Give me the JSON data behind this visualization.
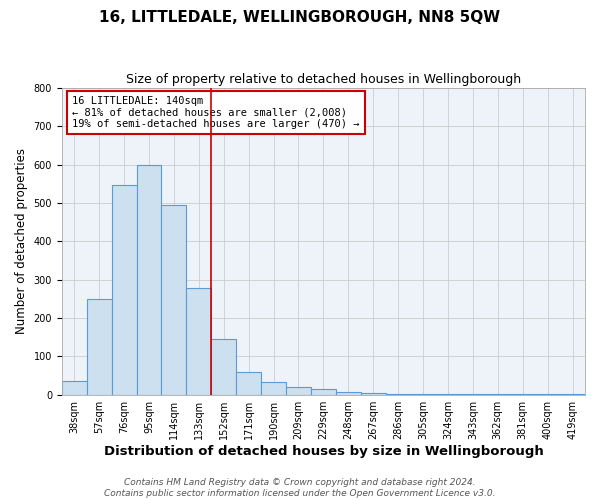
{
  "title": "16, LITTLEDALE, WELLINGBOROUGH, NN8 5QW",
  "subtitle": "Size of property relative to detached houses in Wellingborough",
  "xlabel": "Distribution of detached houses by size in Wellingborough",
  "ylabel": "Number of detached properties",
  "bar_values": [
    35,
    250,
    548,
    600,
    495,
    278,
    145,
    60,
    33,
    20,
    15,
    8,
    5,
    3,
    2,
    2,
    1,
    1,
    1,
    1,
    1
  ],
  "bar_labels": [
    "38sqm",
    "57sqm",
    "76sqm",
    "95sqm",
    "114sqm",
    "133sqm",
    "152sqm",
    "171sqm",
    "190sqm",
    "209sqm",
    "229sqm",
    "248sqm",
    "267sqm",
    "286sqm",
    "305sqm",
    "324sqm",
    "343sqm",
    "362sqm",
    "381sqm",
    "400sqm",
    "419sqm"
  ],
  "bar_color": "#cce0f0",
  "bar_edge_color": "#5b9bd5",
  "bar_linewidth": 0.8,
  "vline_x": 5.5,
  "vline_color": "#cc0000",
  "annotation_title": "16 LITTLEDALE: 140sqm",
  "annotation_line1": "← 81% of detached houses are smaller (2,008)",
  "annotation_line2": "19% of semi-detached houses are larger (470) →",
  "annotation_box_color": "#ffffff",
  "annotation_box_edge": "#cc0000",
  "ylim": [
    0,
    800
  ],
  "yticks": [
    0,
    100,
    200,
    300,
    400,
    500,
    600,
    700,
    800
  ],
  "grid_color": "#cccccc",
  "background_color": "#ffffff",
  "plot_bg_color": "#eef3fa",
  "footer_line1": "Contains HM Land Registry data © Crown copyright and database right 2024.",
  "footer_line2": "Contains public sector information licensed under the Open Government Licence v3.0.",
  "title_fontsize": 11,
  "subtitle_fontsize": 9,
  "xlabel_fontsize": 9.5,
  "ylabel_fontsize": 8.5,
  "tick_fontsize": 7,
  "footer_fontsize": 6.5,
  "annotation_fontsize": 7.5
}
